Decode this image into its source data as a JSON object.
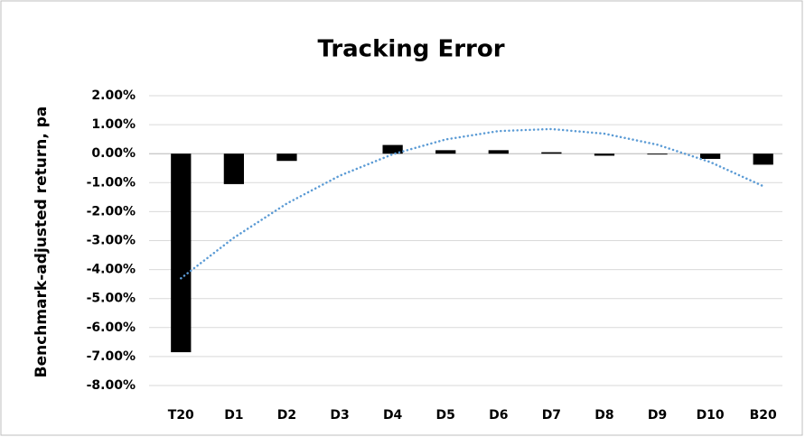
{
  "chart_data": {
    "type": "bar",
    "title": "Tracking Error",
    "y_label": "Benchmark-adjusted return, pa",
    "categories": [
      "T20",
      "D1",
      "D2",
      "D3",
      "D4",
      "D5",
      "D6",
      "D7",
      "D8",
      "D9",
      "D10",
      "B20"
    ],
    "series": [
      {
        "type": "bar",
        "color": "#000000",
        "values": [
          -6.85,
          -1.05,
          -0.25,
          0,
          0.3,
          0.12,
          0.12,
          0.05,
          -0.07,
          -0.03,
          -0.18,
          -0.38
        ]
      },
      {
        "type": "line",
        "style": "dotted",
        "color": "#5b9bd5",
        "values": [
          -4.3,
          -2.9,
          -1.72,
          -0.76,
          -0.02,
          0.49,
          0.78,
          0.85,
          0.69,
          0.31,
          -0.29,
          -1.12
        ]
      }
    ],
    "ylim": [
      -8,
      2
    ],
    "yticks": [
      {
        "value": 2,
        "label": "2.00%"
      },
      {
        "value": 1,
        "label": "1.00%"
      },
      {
        "value": 0,
        "label": "0.00%"
      },
      {
        "value": -1,
        "label": "-1.00%"
      },
      {
        "value": -2,
        "label": "-2.00%"
      },
      {
        "value": -3,
        "label": "-3.00%"
      },
      {
        "value": -4,
        "label": "-4.00%"
      },
      {
        "value": -5,
        "label": "-5.00%"
      },
      {
        "value": -6,
        "label": "-6.00%"
      },
      {
        "value": -7,
        "label": "-7.00%"
      },
      {
        "value": -8,
        "label": "-8.00%"
      }
    ],
    "grid": true
  }
}
